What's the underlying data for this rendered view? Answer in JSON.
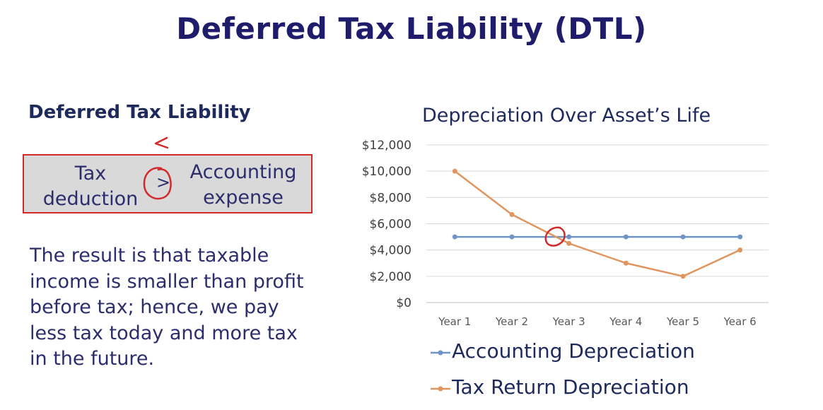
{
  "slide": {
    "title": "Deferred Tax Liability (DTL)"
  },
  "left": {
    "heading": "Deferred Tax Liability",
    "comparison": {
      "left_term_line1": "Tax",
      "left_term_line2": "deduction",
      "operator": ">",
      "right_term_line1": "Accounting",
      "right_term_line2": "expense",
      "handwritten_note": "<"
    },
    "paragraph_lines": [
      "The result is that taxable",
      "income is smaller than profit",
      "before tax; hence, we pay",
      "less tax today and more tax",
      "in the future."
    ]
  },
  "colors": {
    "title": "#1f1c6b",
    "accent_red": "#d22a2a",
    "box_fill": "#d9d9d9",
    "accounting": "#6f94c6",
    "tax_return": "#e0955e"
  },
  "chart_data": {
    "type": "line",
    "title": "Depreciation Over Asset’s Life",
    "categories": [
      "Year 1",
      "Year 2",
      "Year 3",
      "Year 4",
      "Year 5",
      "Year 6"
    ],
    "series": [
      {
        "name": "Accounting Depreciation",
        "color": "#6f94c6",
        "values": [
          5000,
          5000,
          5000,
          5000,
          5000,
          5000
        ]
      },
      {
        "name": "Tax Return Depreciation",
        "color": "#e0955e",
        "values": [
          10000,
          6700,
          4500,
          3000,
          2000,
          4000
        ]
      }
    ],
    "ylim": [
      0,
      12000
    ],
    "yticks": [
      0,
      2000,
      4000,
      6000,
      8000,
      10000,
      12000
    ],
    "ytick_labels": [
      "$0",
      "$2,000",
      "$4,000",
      "$6,000",
      "$8,000",
      "$10,000",
      "$12,000"
    ],
    "grid": true,
    "legend_position": "bottom",
    "annotation": "hand-drawn circle around the crossing point between Year 2 and Year 3"
  }
}
